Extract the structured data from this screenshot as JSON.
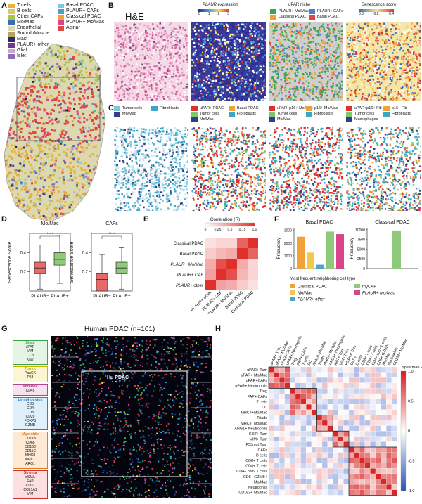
{
  "panelA": {
    "letter": "A",
    "legend_left": [
      {
        "label": "T cells",
        "color": "#e8b13a"
      },
      {
        "label": "B cells",
        "color": "#d9c96a"
      },
      {
        "label": "Other CAFs",
        "color": "#a8c64a"
      },
      {
        "label": "Mo/Mac",
        "color": "#3a6ab5"
      },
      {
        "label": "Endothelial",
        "color": "#dcd8b0"
      },
      {
        "label": "SmoothMuscle",
        "color": "#b9a16b"
      },
      {
        "label": "Mast",
        "color": "#2e2a63"
      },
      {
        "label": "PLAUR+ other",
        "color": "#6b3e8c"
      },
      {
        "label": "Glial",
        "color": "#c9a9cf"
      },
      {
        "label": "Islet",
        "color": "#8a6fb3"
      }
    ],
    "legend_right": [
      {
        "label": "Basal PDAC",
        "color": "#7fc6d8"
      },
      {
        "label": "PLAUR+ CAFs",
        "color": "#4d9ec9"
      },
      {
        "label": "Classical PDAC",
        "color": "#f0a13a"
      },
      {
        "label": "PLAUR+ Mo/Mac",
        "color": "#d8458c"
      },
      {
        "label": "Acinar",
        "color": "#e0473c"
      }
    ]
  },
  "panelB": {
    "letter": "B",
    "he_label": "H&E",
    "plaur_title": "PLAUR expression",
    "plaur_ticks": [
      "0",
      "1",
      "2",
      "3"
    ],
    "niche_title": "uPAR niche",
    "niche_legend": [
      {
        "label": "PLAUR+ Mo/Mac",
        "color": "#3aa64a"
      },
      {
        "label": "PLAUR+ CAFs",
        "color": "#4d7fc9"
      },
      {
        "label": "Classical PDAC",
        "color": "#f0a13a"
      },
      {
        "label": "Basal PDAC",
        "color": "#e0473c"
      }
    ],
    "sen_title": "Senescence score",
    "sen_ticks": [
      "0.0",
      "0.2",
      "0.4"
    ]
  },
  "panelC": {
    "letter": "C",
    "legends": [
      [
        {
          "label": "Tumor cells",
          "color": "#7fc6d8"
        },
        {
          "label": "Fibroblasts",
          "color": "#3aa6c9"
        },
        {
          "label": "Mo/Mac",
          "color": "#2e3f8c"
        }
      ],
      [
        {
          "label": "uPAR+ PDAC",
          "color": "#e0302c"
        },
        {
          "label": "Basal PDAC",
          "color": "#f0a13a"
        },
        {
          "label": "Tumor cells",
          "color": "#7fc66a"
        },
        {
          "label": "Fibroblasts",
          "color": "#3aa6c9"
        },
        {
          "label": "Mo/Mac",
          "color": "#2e3f8c"
        }
      ],
      [
        {
          "label": "uPAR+p16+ Mo/Mac",
          "color": "#e0302c"
        },
        {
          "label": "p16+ Mo/Mac",
          "color": "#f0a13a"
        },
        {
          "label": "Tumor cells",
          "color": "#7fc66a"
        },
        {
          "label": "Fibroblasts",
          "color": "#3aa6c9"
        },
        {
          "label": "Mo/Mac",
          "color": "#2e3f8c"
        }
      ],
      [
        {
          "label": "uPAR+p16+ Fib",
          "color": "#e0302c"
        },
        {
          "label": "p16+ Fib",
          "color": "#f0a13a"
        },
        {
          "label": "Tumor cells",
          "color": "#7fc66a"
        },
        {
          "label": "Fibroblasts",
          "color": "#3aa6c9"
        },
        {
          "label": "Macrophages",
          "color": "#2e3f8c"
        }
      ]
    ]
  },
  "panelD": {
    "letter": "D",
    "ylabel": "Senescence Score",
    "chart_data": [
      {
        "type": "box",
        "title": "Mo/Mac",
        "categories": [
          "PLAUR−",
          "PLAUR+"
        ],
        "significance": "****",
        "boxes": [
          {
            "name": "PLAUR−",
            "whisker_low": 0.02,
            "q1": 0.18,
            "median": 0.24,
            "q3": 0.3,
            "whisker_high": 0.48,
            "color": "#e76a6a"
          },
          {
            "name": "PLAUR+",
            "whisker_low": 0.08,
            "q1": 0.27,
            "median": 0.33,
            "q3": 0.4,
            "whisker_high": 0.58,
            "color": "#8fc97a"
          }
        ]
      },
      {
        "type": "box",
        "title": "CAFs",
        "categories": [
          "PLAUR−",
          "PLAUR+"
        ],
        "significance": "****",
        "boxes": [
          {
            "name": "PLAUR−",
            "whisker_low": 0.0,
            "q1": 0.0,
            "median": 0.12,
            "q3": 0.18,
            "whisker_high": 0.38,
            "color": "#e76a6a"
          },
          {
            "name": "PLAUR+",
            "whisker_low": 0.02,
            "q1": 0.18,
            "median": 0.24,
            "q3": 0.3,
            "whisker_high": 0.45,
            "color": "#8fc97a"
          }
        ]
      }
    ]
  },
  "panelE": {
    "letter": "E",
    "title": "Correlation (R)",
    "ticks": [
      "0",
      "0.25",
      "0.5",
      "0.75",
      "1.0"
    ],
    "chart_data": {
      "type": "heatmap",
      "rows": [
        "Classical PDAC",
        "Basal PDAC",
        "PLAUR+ Mo/Mac",
        "PLAUR+ CAF",
        "PLAUR+ other"
      ],
      "cols": [
        "PLAUR+ other",
        "PLAUR+ CAF",
        "PLAUR+ Mo/Mac",
        "Basal PDAC",
        "Classical PDAC"
      ],
      "values": [
        [
          0.15,
          0.2,
          0.2,
          0.75,
          1.0
        ],
        [
          0.25,
          0.35,
          0.4,
          1.0,
          0.75
        ],
        [
          0.4,
          0.85,
          1.0,
          0.4,
          0.2
        ],
        [
          0.45,
          1.0,
          0.85,
          0.35,
          0.2
        ],
        [
          1.0,
          0.45,
          0.4,
          0.25,
          0.15
        ]
      ]
    }
  },
  "panelF": {
    "letter": "F",
    "ylabel": "Frequency",
    "legend_title": "Most frequent neighboring cell type",
    "legend": [
      {
        "label": "Classical PDAC",
        "color": "#f0a13a"
      },
      {
        "label": "myCAF",
        "color": "#8fc97a"
      },
      {
        "label": "Mo/Mac",
        "color": "#f2c94c"
      },
      {
        "label": "PLAUR+ Mo/Mac",
        "color": "#d8458c"
      },
      {
        "label": "PLAUR+ other",
        "color": "#4da6c9"
      }
    ],
    "chart_data": [
      {
        "type": "bar",
        "title": "Basal PDAC",
        "categories": [
          "Classical PDAC",
          "Mo/Mac",
          "PLAUR+ other",
          "myCAF",
          "PLAUR+ Mo/Mac"
        ],
        "values": [
          2500,
          1250,
          300,
          2900,
          2700
        ],
        "colors": [
          "#f0a13a",
          "#f2c94c",
          "#4da6c9",
          "#8fc97a",
          "#d8458c"
        ],
        "yticks": [
          "0",
          "1000",
          "2000",
          "3000"
        ],
        "ylim": [
          0,
          3200
        ]
      },
      {
        "type": "bar",
        "title": "Classical PDAC",
        "categories": [
          "Classical PDAC",
          "myCAF"
        ],
        "values": [
          0,
          9800
        ],
        "colors": [
          "#f0a13a",
          "#8fc97a"
        ],
        "yticks": [
          "0",
          "2500",
          "5000",
          "7500",
          "10000"
        ],
        "ylim": [
          0,
          10500
        ]
      }
    ]
  },
  "panelG": {
    "letter": "G",
    "title": "Human PDAC (n=101)",
    "inset_label": "Hu PDAC",
    "groups": [
      {
        "head": "State",
        "items": [
          "uPAR",
          "VIM",
          "CC3",
          "Ki67"
        ],
        "color": "#3aa64a",
        "bg": "#e6f4e6"
      },
      {
        "head": "Tumor",
        "items": [
          "PanCK",
          "P53"
        ],
        "color": "#c9b400",
        "bg": "#fbf6d0"
      },
      {
        "head": "Immune",
        "items": [
          "CD45"
        ],
        "color": "#b1458c",
        "bg": "#f6e1ee"
      },
      {
        "head": "Lymphocytes",
        "items": [
          "CD3",
          "CD4",
          "CD8",
          "CD20",
          "FOXP3",
          "GZMB"
        ],
        "color": "#2e7fc9",
        "bg": "#dff0fb"
      },
      {
        "head": "Myeloids",
        "items": [
          "CD11B",
          "CD68",
          "CD163",
          "CD11C",
          "MHCII",
          "MRC1",
          "ARG1"
        ],
        "color": "#e07a1a",
        "bg": "#fde9d4"
      },
      {
        "head": "Stroma",
        "items": [
          "αSMA",
          "FAP",
          "CD31",
          "COL1A1",
          "VIM"
        ],
        "color": "#d0302c",
        "bg": "#fbe0df"
      }
    ]
  },
  "panelH": {
    "letter": "H",
    "colorbar_title": "Spearman R",
    "colorbar_ticks": [
      "1.0",
      "0.5",
      "0",
      "-0.5",
      "-1.0"
    ],
    "rows": [
      "uPAR+ Tum",
      "uPAR+ Mo/Mac",
      "uPAR+CAFs",
      "uPAR+ Neutrophils",
      "Treg",
      "FAP+ CAFs",
      "T cells",
      "DC",
      "MHCII+Mo/Mac",
      "Triads",
      "MHCII- Mo/Mac",
      "ARG1+ Neutrophils",
      "Ki67+ Tum",
      "VIM+ Tum",
      "P53mut Tum",
      "CAFs",
      "B cells",
      "CD8+ T cells",
      "CD4+ T cells",
      "CD4+ conv T cells",
      "CD8+ GZMB+",
      "Mo/Mac",
      "Neutrophils",
      "CD163+ Mo/Mac"
    ]
  }
}
